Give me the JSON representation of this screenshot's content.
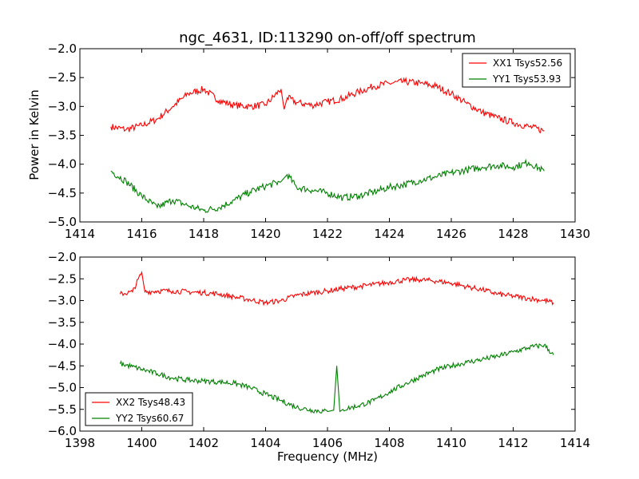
{
  "title": "ngc_4631, ID:113290 on-off/off spectrum",
  "ylabel": "Power in Kelvin",
  "xlabel": "Frequency (MHz)",
  "colors": {
    "XX": "#ff0000",
    "YY": "#008000",
    "axes": "#000000",
    "background": "#ffffff"
  },
  "chart_data": [
    {
      "type": "line",
      "title": "ngc_4631, ID:113290 on-off/off spectrum",
      "xlabel": "",
      "ylabel": "Power in Kelvin",
      "xlim": [
        1414,
        1430
      ],
      "ylim": [
        -5.0,
        -2.0
      ],
      "xticks": [
        "1414",
        "1416",
        "1418",
        "1420",
        "1422",
        "1424",
        "1426",
        "1428",
        "1430"
      ],
      "yticks": [
        "−2.0",
        "−2.5",
        "−3.0",
        "−3.5",
        "−4.0",
        "−4.5",
        "−5.0"
      ],
      "grid": false,
      "legend": "top-right",
      "series": [
        {
          "name": "XX1 Tsys52.56",
          "color": "#ff0000",
          "x": [
            1415.0,
            1415.5,
            1416.0,
            1416.5,
            1417.0,
            1417.5,
            1418.0,
            1418.5,
            1419.0,
            1419.5,
            1420.0,
            1420.5,
            1420.6,
            1420.7,
            1421.0,
            1421.5,
            1422.0,
            1422.5,
            1423.0,
            1423.5,
            1424.0,
            1424.5,
            1425.0,
            1425.5,
            1426.0,
            1426.5,
            1427.0,
            1427.5,
            1428.0,
            1428.5,
            1429.0
          ],
          "y": [
            -3.35,
            -3.4,
            -3.33,
            -3.22,
            -3.0,
            -2.78,
            -2.7,
            -2.9,
            -2.98,
            -3.0,
            -2.97,
            -2.7,
            -3.05,
            -2.85,
            -2.93,
            -2.98,
            -2.92,
            -2.86,
            -2.75,
            -2.65,
            -2.6,
            -2.57,
            -2.6,
            -2.65,
            -2.78,
            -2.95,
            -3.1,
            -3.2,
            -3.28,
            -3.35,
            -3.42
          ]
        },
        {
          "name": "YY1 Tsys53.93",
          "color": "#008000",
          "x": [
            1415.0,
            1415.5,
            1416.0,
            1416.5,
            1417.0,
            1417.5,
            1418.0,
            1418.5,
            1419.0,
            1419.5,
            1420.0,
            1420.5,
            1420.7,
            1421.0,
            1421.5,
            1422.0,
            1422.5,
            1423.0,
            1423.5,
            1424.0,
            1424.5,
            1425.0,
            1425.5,
            1426.0,
            1426.5,
            1427.0,
            1427.5,
            1428.0,
            1428.5,
            1429.0
          ],
          "y": [
            -4.12,
            -4.3,
            -4.55,
            -4.75,
            -4.62,
            -4.72,
            -4.8,
            -4.75,
            -4.62,
            -4.48,
            -4.38,
            -4.3,
            -4.18,
            -4.4,
            -4.45,
            -4.5,
            -4.58,
            -4.55,
            -4.48,
            -4.4,
            -4.35,
            -4.28,
            -4.22,
            -4.15,
            -4.1,
            -4.05,
            -4.02,
            -4.05,
            -3.97,
            -4.12
          ]
        }
      ]
    },
    {
      "type": "line",
      "title": "",
      "xlabel": "Frequency (MHz)",
      "ylabel": "",
      "xlim": [
        1398,
        1414
      ],
      "ylim": [
        -6.0,
        -2.0
      ],
      "xticks": [
        "1398",
        "1400",
        "1402",
        "1404",
        "1406",
        "1408",
        "1410",
        "1412",
        "1414"
      ],
      "yticks": [
        "−2.0",
        "−2.5",
        "−3.0",
        "−3.5",
        "−4.0",
        "−4.5",
        "−5.0",
        "−5.5",
        "−6.0"
      ],
      "grid": false,
      "legend": "bottom-left",
      "series": [
        {
          "name": "XX2 Tsys48.43",
          "color": "#ff0000",
          "x": [
            1399.3,
            1399.7,
            1400.0,
            1400.1,
            1400.5,
            1401.0,
            1401.5,
            1402.0,
            1402.5,
            1403.0,
            1403.5,
            1404.0,
            1404.5,
            1405.0,
            1405.5,
            1406.0,
            1406.5,
            1407.0,
            1407.5,
            1408.0,
            1408.5,
            1409.0,
            1409.5,
            1410.0,
            1410.5,
            1411.0,
            1411.5,
            1412.0,
            1412.5,
            1413.0,
            1413.3
          ],
          "y": [
            -2.85,
            -2.8,
            -2.35,
            -2.8,
            -2.78,
            -2.78,
            -2.8,
            -2.82,
            -2.85,
            -2.92,
            -2.98,
            -3.05,
            -3.0,
            -2.88,
            -2.82,
            -2.78,
            -2.72,
            -2.68,
            -2.63,
            -2.58,
            -2.53,
            -2.52,
            -2.55,
            -2.6,
            -2.68,
            -2.75,
            -2.85,
            -2.9,
            -2.95,
            -3.0,
            -3.05
          ]
        },
        {
          "name": "YY2 Tsys60.67",
          "color": "#008000",
          "x": [
            1399.3,
            1399.7,
            1400.0,
            1400.5,
            1401.0,
            1401.5,
            1402.0,
            1402.5,
            1403.0,
            1403.5,
            1404.0,
            1404.5,
            1405.0,
            1405.5,
            1406.0,
            1406.2,
            1406.3,
            1406.4,
            1406.5,
            1407.0,
            1407.5,
            1408.0,
            1408.5,
            1409.0,
            1409.5,
            1410.0,
            1410.5,
            1411.0,
            1411.5,
            1412.0,
            1412.5,
            1413.0,
            1413.3
          ],
          "y": [
            -4.45,
            -4.52,
            -4.58,
            -4.68,
            -4.78,
            -4.83,
            -4.85,
            -4.87,
            -4.9,
            -5.0,
            -5.15,
            -5.3,
            -5.45,
            -5.52,
            -5.55,
            -5.52,
            -4.5,
            -5.55,
            -5.5,
            -5.42,
            -5.3,
            -5.1,
            -4.92,
            -4.75,
            -4.6,
            -4.5,
            -4.42,
            -4.35,
            -4.28,
            -4.18,
            -4.08,
            -4.02,
            -4.25
          ]
        }
      ]
    }
  ]
}
